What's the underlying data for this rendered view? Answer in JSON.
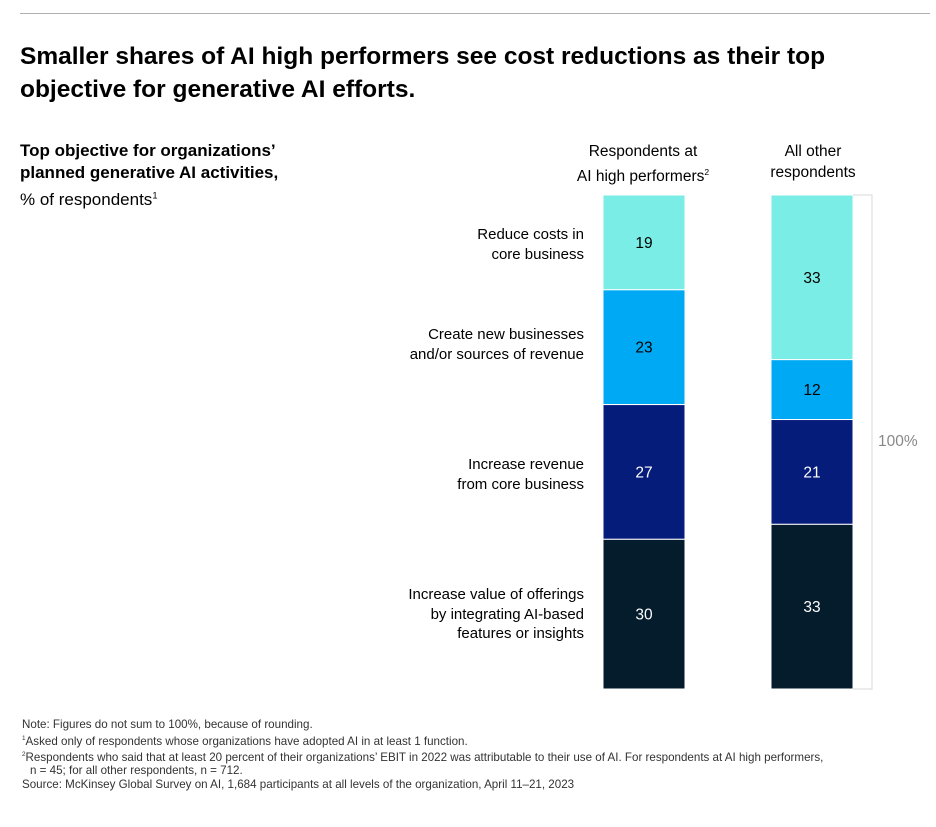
{
  "title": "Smaller shares of AI high performers see cost reductions as their top objective for generative AI efforts.",
  "subtitle": {
    "line1": "Top objective for organizations’",
    "line2": "planned generative AI activities,",
    "line3": "% of respondents",
    "line3_sup": "1"
  },
  "columns": [
    {
      "line1": "Respondents at",
      "line2": "AI high performers",
      "sup": "2"
    },
    {
      "line1": "All other",
      "line2": "respondents",
      "sup": ""
    }
  ],
  "categories": [
    {
      "line1": "Reduce costs in",
      "line2": "core business"
    },
    {
      "line1": "Create new businesses",
      "line2": "and/or sources of revenue"
    },
    {
      "line1": "Increase revenue",
      "line2": "from core business"
    },
    {
      "line1": "Increase value of offerings",
      "line2": "by integrating AI-based",
      "line3": "features or insights"
    }
  ],
  "bracket_label": "100%",
  "colors": {
    "reduce_costs": "#7aeee6",
    "new_businesses": "#00a9f4",
    "increase_revenue": "#051c7a",
    "increase_value": "#051c2c",
    "text_light": "#000000",
    "text_dark": "#ffffff",
    "bracket": "#d9d9d9"
  },
  "chart_data": {
    "type": "bar",
    "stacked": true,
    "orientation": "vertical",
    "categories": [
      "Respondents at AI high performers",
      "All other respondents"
    ],
    "series": [
      {
        "name": "Reduce costs in core business",
        "values": [
          19,
          33
        ]
      },
      {
        "name": "Create new businesses and/or sources of revenue",
        "values": [
          23,
          12
        ]
      },
      {
        "name": "Increase revenue from core business",
        "values": [
          27,
          21
        ]
      },
      {
        "name": "Increase value of offerings by integrating AI-based features or insights",
        "values": [
          30,
          33
        ]
      }
    ],
    "ylim": [
      0,
      100
    ]
  },
  "notes": [
    {
      "text": "Note: Figures do not sum to 100%, because of rounding.",
      "sup": ""
    },
    {
      "text": "Asked only of respondents whose organizations have adopted AI in at least 1 function.",
      "sup": "1"
    },
    {
      "text": "Respondents who said that at least 20 percent of their organizations’ EBIT in 2022 was attributable to their use of AI. For respondents at AI high performers,",
      "sup": "2"
    },
    {
      "text": "n = 45; for all other respondents, n = 712.",
      "sup": ""
    },
    {
      "text": "Source: McKinsey Global Survey on AI, 1,684 participants at all levels of the organization, April 11–21, 2023",
      "sup": ""
    }
  ]
}
